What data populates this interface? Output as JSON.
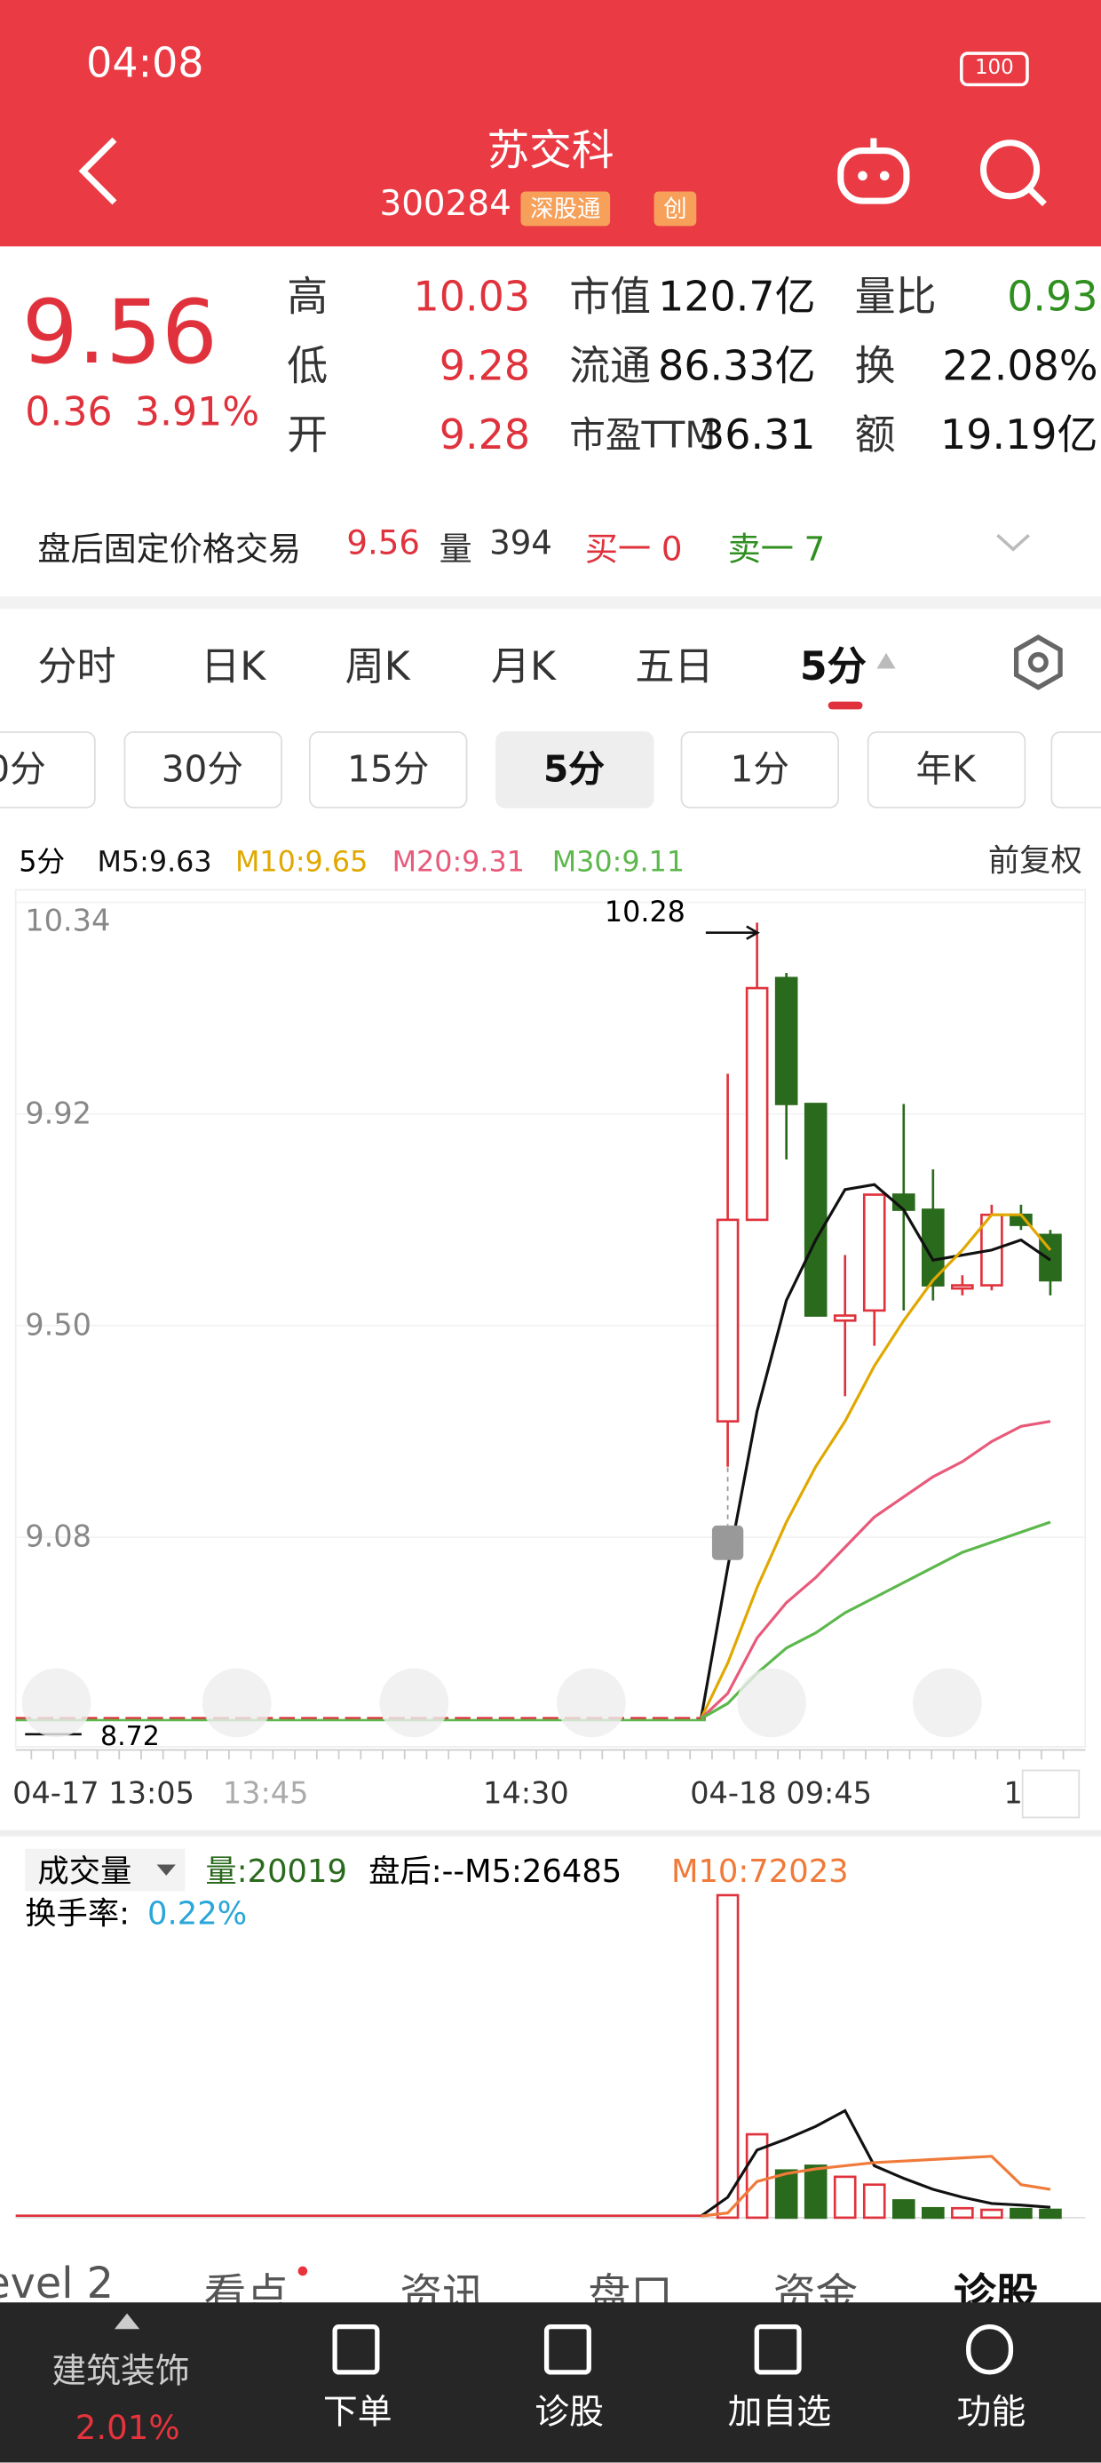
{
  "status_bar": {
    "time": "04:08",
    "battery": "100"
  },
  "header": {
    "title": "苏交科",
    "code": "300284",
    "tags": [
      "深股通",
      "创"
    ]
  },
  "quote": {
    "price": "9.56",
    "change": "0.36",
    "change_pct": "3.91%",
    "stats": [
      [
        {
          "label": "高",
          "value": "10.03"
        },
        {
          "label": "市值",
          "value": "120.7亿"
        },
        {
          "label": "量比",
          "value": "0.93"
        }
      ],
      [
        {
          "label": "低",
          "value": "9.28"
        },
        {
          "label": "流通",
          "value": "86.33亿"
        },
        {
          "label": "换",
          "value": "22.08%"
        }
      ],
      [
        {
          "label": "开",
          "value": "9.28"
        },
        {
          "label": "市盈TTM",
          "value": "36.31"
        },
        {
          "label": "额",
          "value": "19.19亿"
        }
      ]
    ]
  },
  "after_hours": {
    "label": "盘后固定价格交易",
    "price": "9.56",
    "volume_label": "量",
    "volume": "394",
    "bid": "买一 0",
    "ask": "卖一 7"
  },
  "tabs": [
    "分时",
    "日K",
    "周K",
    "月K",
    "五日",
    "5分"
  ],
  "periods": [
    "0分",
    "30分",
    "15分",
    "5分",
    "1分",
    "年K"
  ],
  "kline": {
    "type": "candlestick",
    "period": "5分",
    "adjust": "前复权",
    "ma_labels": [
      "M5:9.63",
      "M10:9.65",
      "M20:9.31",
      "M30:9.11"
    ],
    "ylim": [
      8.72,
      10.34
    ],
    "yticks": [
      10.34,
      9.92,
      {
        "value": 9.5,
        "label": "9.50"
      },
      9.08
    ],
    "high": 10.28,
    "low": 8.72,
    "x_labels": [
      "04-17 13:05",
      "13:45",
      "14:30",
      "04-18 09:45",
      "1"
    ],
    "open": [
      9.31,
      9.71,
      10.19,
      9.94,
      9.51,
      9.53,
      9.76,
      9.73,
      9.58,
      9.58,
      9.72,
      9.68
    ],
    "close": [
      9.71,
      10.17,
      9.94,
      9.52,
      9.52,
      9.76,
      9.73,
      9.58,
      9.58,
      9.72,
      9.7,
      9.59
    ],
    "high_values": [
      10.0,
      10.3,
      10.2,
      9.94,
      9.64,
      9.76,
      9.94,
      9.81,
      9.6,
      9.74,
      9.74,
      9.69
    ],
    "low_values": [
      9.22,
      9.71,
      9.83,
      9.52,
      9.36,
      9.46,
      9.53,
      9.55,
      9.56,
      9.57,
      9.69,
      9.56
    ],
    "ma": [
      {
        "color": "#111111",
        "values": [
          9.02,
          9.33,
          9.55,
          9.67,
          9.77,
          9.78,
          9.73,
          9.63,
          9.64,
          9.65,
          9.67,
          9.63
        ]
      },
      {
        "color": "#e0a800",
        "values": [
          8.83,
          8.98,
          9.11,
          9.22,
          9.31,
          9.42,
          9.51,
          9.59,
          9.65,
          9.72,
          9.72,
          9.65
        ]
      },
      {
        "color": "#e85a7a",
        "values": [
          8.77,
          8.88,
          8.95,
          9.0,
          9.06,
          9.12,
          9.16,
          9.2,
          9.23,
          9.27,
          9.3,
          9.31
        ]
      },
      {
        "color": "#5cb84c",
        "values": [
          8.75,
          8.81,
          8.86,
          8.89,
          8.93,
          8.96,
          8.99,
          9.02,
          9.05,
          9.07,
          9.09,
          9.11
        ]
      }
    ]
  },
  "volume": {
    "type": "bar",
    "title": "成交量",
    "volume_label": "量:20019",
    "after": "盘后:--M5:26485",
    "m10": "M10:72023",
    "turnover_label": "换手率:",
    "turnover": "0.22%",
    "ylim": [
      0,
      850000
    ],
    "values": [
      820000,
      212000,
      120000,
      132000,
      104000,
      84000,
      44000,
      24000,
      24000,
      20000,
      22000,
      20019
    ],
    "ma": [
      {
        "color": "#111111",
        "values": [
          52000,
          172000,
          200000,
          232000,
          272000,
          132000,
          100000,
          72000,
          52000,
          36000,
          32000,
          26485
        ]
      },
      {
        "color": "#f07a3a",
        "values": [
          12000,
          92000,
          112000,
          124000,
          132000,
          140000,
          144000,
          148000,
          152000,
          156000,
          84000,
          72023
        ]
      }
    ]
  },
  "bottom_tabs": [
    "evel 2",
    "看点",
    "资讯",
    "盘口",
    "资金",
    "诊股"
  ],
  "nav": {
    "sector": "建筑装饰",
    "sector_change": "2.01%",
    "items": [
      "下单",
      "诊股",
      "加自选",
      "功能"
    ]
  }
}
